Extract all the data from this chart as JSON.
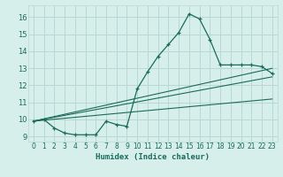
{
  "xlabel": "Humidex (Indice chaleur)",
  "bg_color": "#d6efeb",
  "grid_color": "#b8d8d4",
  "line_color": "#1a6b5a",
  "xlim": [
    -0.5,
    23.5
  ],
  "ylim": [
    8.7,
    16.7
  ],
  "xticks": [
    0,
    1,
    2,
    3,
    4,
    5,
    6,
    7,
    8,
    9,
    10,
    11,
    12,
    13,
    14,
    15,
    16,
    17,
    18,
    19,
    20,
    21,
    22,
    23
  ],
  "yticks": [
    9,
    10,
    11,
    12,
    13,
    14,
    15,
    16
  ],
  "curve1_x": [
    0,
    1,
    2,
    3,
    4,
    5,
    6,
    7,
    8,
    9,
    10,
    11,
    12,
    13,
    14,
    15,
    16,
    17,
    18,
    19,
    20,
    21,
    22,
    23
  ],
  "curve1_y": [
    9.9,
    10.0,
    9.5,
    9.2,
    9.1,
    9.1,
    9.1,
    9.9,
    9.7,
    9.6,
    11.8,
    12.8,
    13.7,
    14.4,
    15.1,
    16.2,
    15.9,
    14.7,
    13.2,
    13.2,
    13.2,
    13.2,
    13.1,
    12.7
  ],
  "line2_x": [
    0,
    23
  ],
  "line2_y": [
    9.9,
    13.0
  ],
  "line3_x": [
    0,
    23
  ],
  "line3_y": [
    9.9,
    12.5
  ],
  "line4_x": [
    0,
    23
  ],
  "line4_y": [
    9.9,
    11.2
  ]
}
